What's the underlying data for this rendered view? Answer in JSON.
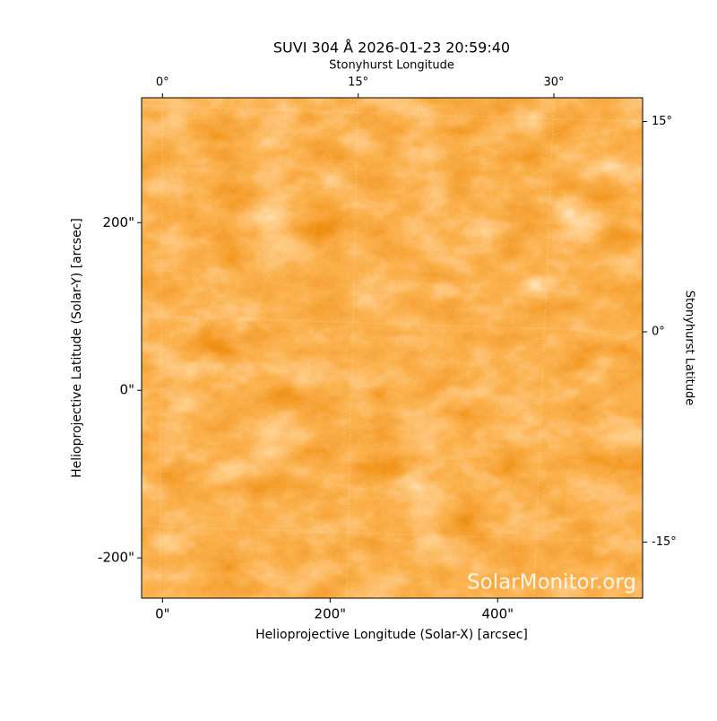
{
  "chart_data": {
    "type": "image",
    "title": "SUVI 304 Å 2026-01-23 20:59:40",
    "xlabel": "Helioprojective Longitude (Solar-X) [arcsec]",
    "ylabel": "Helioprojective Latitude (Solar-Y) [arcsec]",
    "x2label": "Stonyhurst Longitude",
    "y2label": "Stonyhurst Latitude",
    "watermark": "SolarMonitor.org",
    "xlim": [
      -25,
      573
    ],
    "ylim": [
      -248,
      349
    ],
    "xticks": [
      {
        "value": 0,
        "label": "0\""
      },
      {
        "value": 200,
        "label": "200\""
      },
      {
        "value": 400,
        "label": "400\""
      }
    ],
    "yticks": [
      {
        "value": -200,
        "label": "-200\""
      },
      {
        "value": 0,
        "label": "0\""
      },
      {
        "value": 200,
        "label": "200\""
      }
    ],
    "x2lim": [
      -1.6,
      36.8
    ],
    "x2ticks": [
      {
        "value": 0,
        "label": "0°"
      },
      {
        "value": 15,
        "label": "15°"
      },
      {
        "value": 30,
        "label": "30°"
      }
    ],
    "y2lim": [
      -19,
      16.7
    ],
    "y2ticks": [
      {
        "value": -15,
        "label": "-15°"
      },
      {
        "value": 0,
        "label": "0°"
      },
      {
        "value": 15,
        "label": "15°"
      }
    ],
    "grid": true
  }
}
